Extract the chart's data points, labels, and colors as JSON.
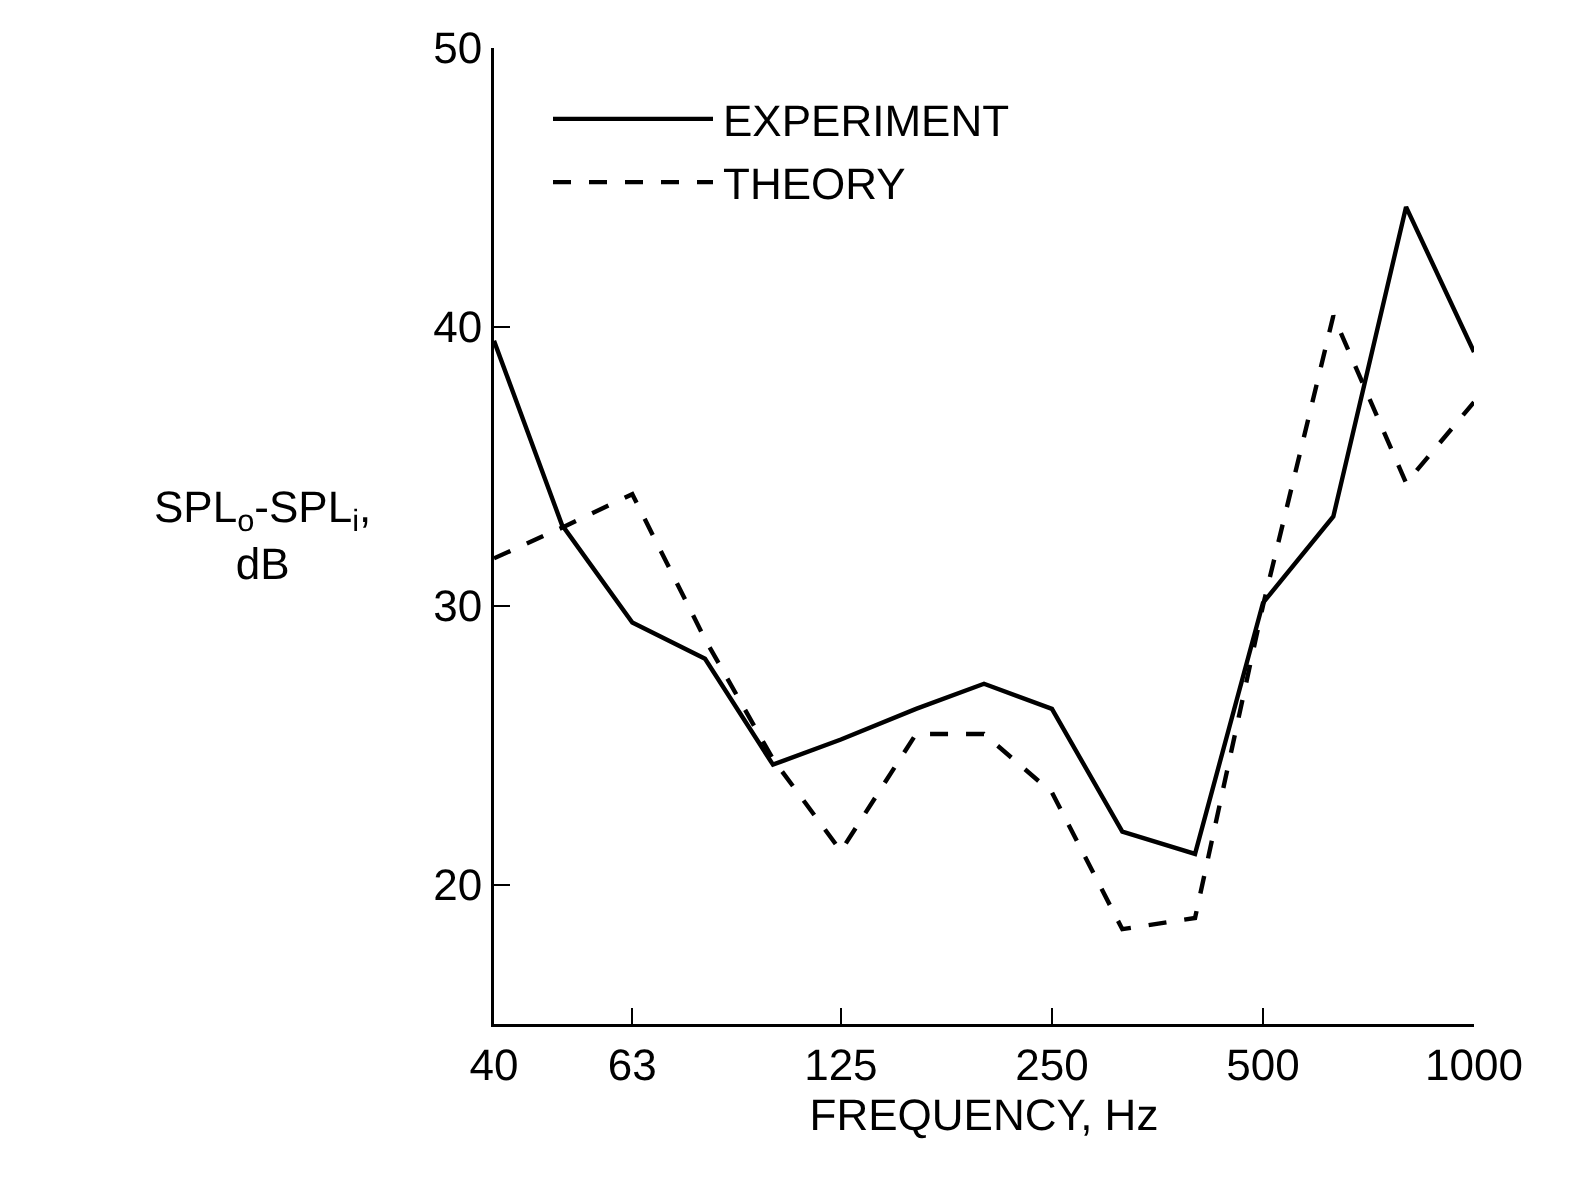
{
  "chart_data": {
    "type": "line",
    "xlabel": "FREQUENCY, Hz",
    "ylabel": "SPL$_{o}$-SPL$_{i}$,\ndB",
    "x": [
      40,
      50,
      63,
      80,
      100,
      125,
      160,
      200,
      250,
      315,
      400,
      500,
      630,
      800,
      1000
    ],
    "series": [
      {
        "name": "EXPERIMENT",
        "color": "#000000",
        "line_style": "solid",
        "values": [
          39.5,
          32.9,
          29.4,
          28.1,
          24.3,
          25.2,
          26.3,
          27.2,
          26.3,
          21.9,
          21.1,
          30.1,
          33.2,
          44.3,
          39.1
        ]
      },
      {
        "name": "THEORY",
        "color": "#000000",
        "line_style": "dashed",
        "values": [
          31.7,
          32.8,
          34.0,
          28.8,
          24.5,
          21.2,
          25.4,
          25.4,
          23.3,
          18.4,
          18.8,
          30.0,
          40.4,
          34.4,
          37.3
        ]
      }
    ],
    "log": "x",
    "xlim": [
      40,
      1000
    ],
    "xticks": [
      40,
      63,
      125,
      250,
      500,
      1000
    ],
    "ylim": [
      15,
      50
    ],
    "yticks": [
      20,
      30,
      40,
      50
    ],
    "grid": false,
    "legend": "top left",
    "marker": "none"
  }
}
